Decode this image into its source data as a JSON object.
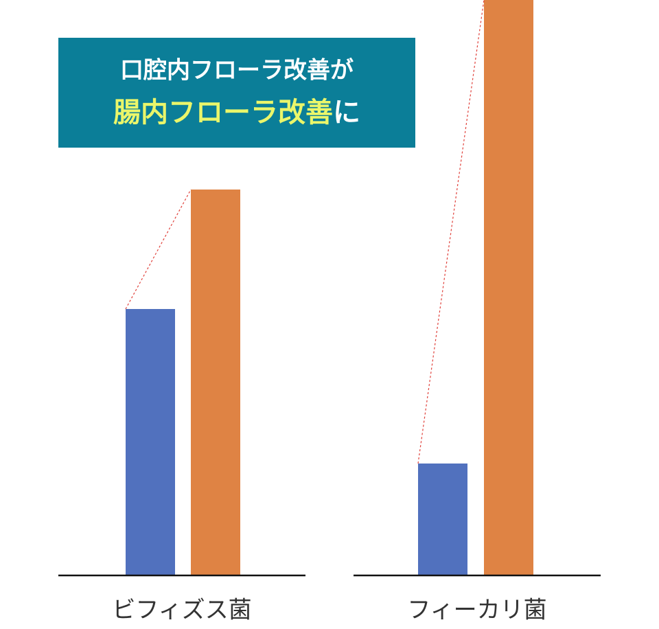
{
  "chart_data": {
    "type": "bar",
    "title": {
      "line1": "口腔内フローラ改善が",
      "line2_highlight": "腸内フローラ改善",
      "line2_rest": "に"
    },
    "categories": [
      "ビフィズス菌",
      "フィーカリ菌"
    ],
    "series": [
      {
        "color": "#5171be",
        "values": [
          387,
          162
        ]
      },
      {
        "color": "#df8344",
        "values": [
          561,
          837
        ]
      }
    ],
    "ylim": [
      0,
      837
    ],
    "connector_color": "#e0403a"
  }
}
